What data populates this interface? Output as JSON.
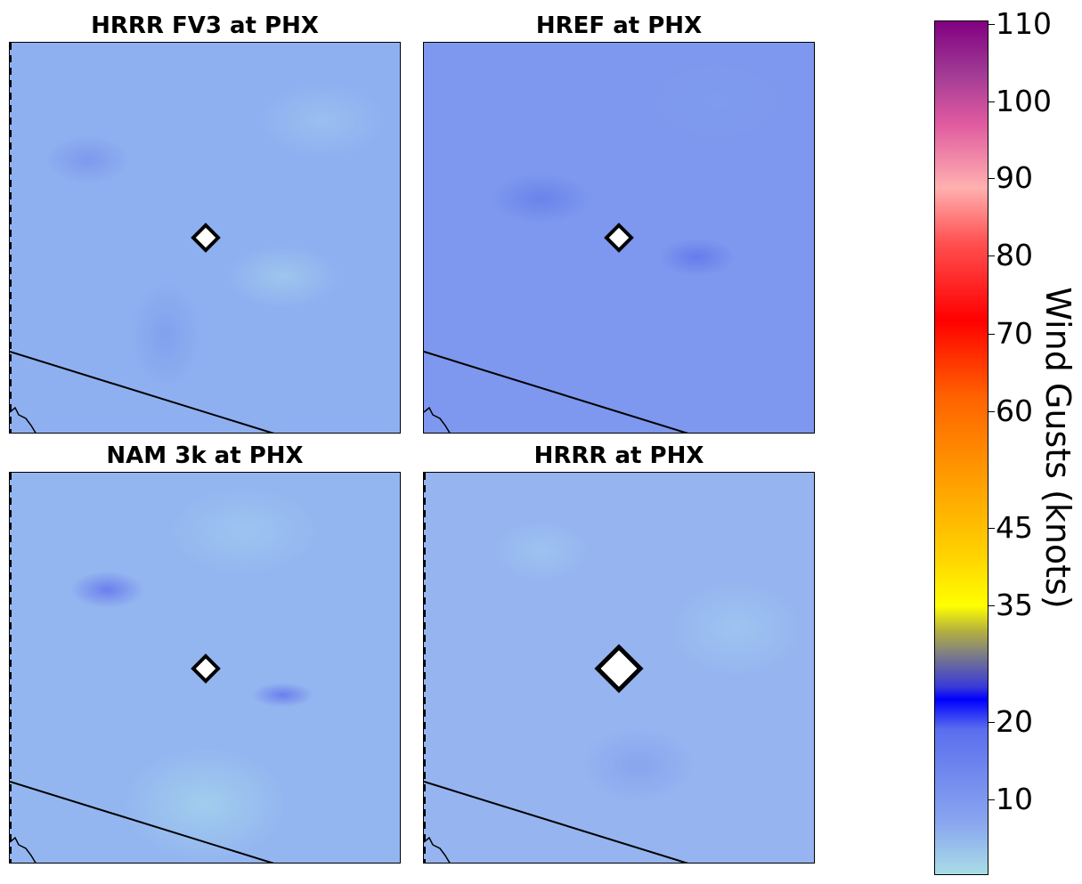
{
  "panels": [
    {
      "title": "HRRR FV3 at PHX",
      "station": "PHX"
    },
    {
      "title": "HREF at PHX",
      "station": "PHX"
    },
    {
      "title": "NAM 3k at PHX",
      "station": "PHX"
    },
    {
      "title": "HRRR at PHX",
      "station": "PHX"
    }
  ],
  "colorbar": {
    "label": "Wind Gusts (knots)",
    "ticks": [
      "110",
      "100",
      "90",
      "80",
      "70",
      "60",
      "45",
      "35",
      "20",
      "10"
    ],
    "range": [
      0,
      110
    ]
  },
  "colors": {
    "low": "#a8dde6",
    "blue": "#0000ff",
    "yellow": "#ffff00",
    "orange": "#ffa500",
    "red": "#ff0000",
    "pink": "#ffb0b0",
    "purple": "#820082"
  }
}
